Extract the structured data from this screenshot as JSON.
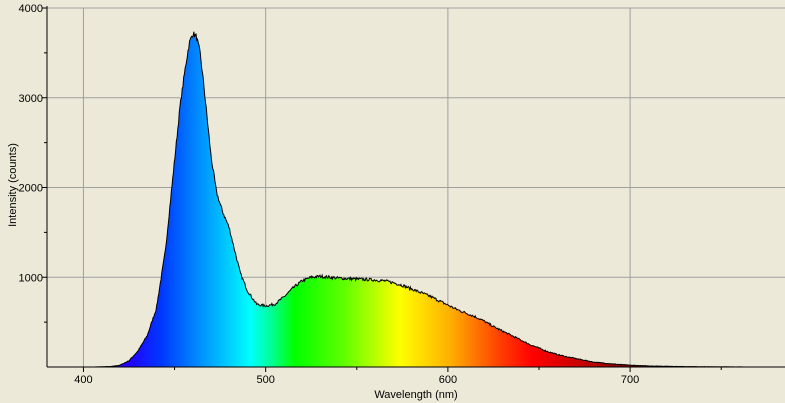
{
  "chart_data": {
    "type": "area",
    "title": "",
    "xlabel": "Wavelength (nm)",
    "ylabel": "Intensity (counts)",
    "xlim": [
      380,
      785
    ],
    "ylim": [
      0,
      4000
    ],
    "x_ticks": [
      400,
      500,
      600,
      700
    ],
    "y_ticks": [
      1000,
      2000,
      3000,
      4000
    ],
    "grid": true,
    "legend": "none",
    "fill": "visible-spectrum-gradient",
    "x": [
      405,
      415,
      420,
      425,
      430,
      435,
      440,
      445,
      450,
      453,
      456,
      458,
      460,
      462,
      464,
      466,
      468,
      470,
      473,
      476,
      480,
      483,
      486,
      490,
      495,
      500,
      505,
      510,
      515,
      520,
      525,
      530,
      535,
      540,
      545,
      550,
      555,
      560,
      565,
      570,
      575,
      580,
      585,
      590,
      595,
      600,
      605,
      610,
      615,
      620,
      625,
      630,
      635,
      640,
      645,
      650,
      655,
      660,
      665,
      670,
      675,
      680,
      690,
      700,
      710,
      720,
      730,
      740,
      750,
      760,
      765
    ],
    "y": [
      0,
      5,
      20,
      70,
      180,
      350,
      650,
      1300,
      2300,
      2900,
      3350,
      3600,
      3720,
      3680,
      3500,
      3150,
      2750,
      2350,
      1950,
      1750,
      1550,
      1300,
      1050,
      850,
      700,
      680,
      700,
      780,
      880,
      960,
      1000,
      1010,
      1000,
      990,
      985,
      980,
      975,
      970,
      960,
      940,
      910,
      870,
      830,
      790,
      740,
      690,
      640,
      600,
      560,
      510,
      450,
      400,
      350,
      300,
      250,
      210,
      170,
      140,
      115,
      95,
      75,
      55,
      35,
      20,
      12,
      8,
      5,
      3,
      2,
      1,
      0
    ]
  }
}
